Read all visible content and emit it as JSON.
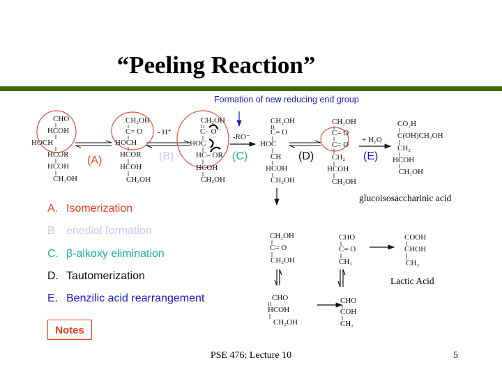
{
  "slide": {
    "title": "“Peeling Reaction”",
    "subtitle": "Formation of new reducing end group",
    "accent_bar_color": "#3d6b07",
    "footer": "PSE 476: Lecture 10",
    "page_number": "5",
    "notes_button": "Notes"
  },
  "scheme": {
    "structures": [
      {
        "id": "aldose",
        "lines": [
          "CHO",
          "HCOH",
          "HOCH",
          "HCOR",
          "HCOH",
          "CH₂OH"
        ]
      },
      {
        "id": "ketose",
        "lines": [
          "CH₂OH",
          "C= O",
          "HOCH",
          "HCOR",
          "HCOH",
          "CH₂OH"
        ]
      },
      {
        "id": "enediol-anion",
        "lines": [
          "CH₂OH",
          "C– O⁻",
          "HOC",
          "HC– OR",
          "HCOH",
          "CH₂OH"
        ]
      },
      {
        "id": "enol",
        "lines": [
          "CH₂OH",
          "C= O",
          "HOC",
          "CH",
          "HCOH",
          "CH₂OH"
        ]
      },
      {
        "id": "dicarbonyl",
        "lines": [
          "CH₂OH",
          "C= O",
          "C= O",
          "CH₂",
          "HCOH",
          "CH₂OH"
        ]
      },
      {
        "id": "glucoisosaccharinic-acid",
        "lines": [
          "CO₂H",
          "C(OH)CH₂OH",
          "CH₂",
          "HCOH",
          "CH₂OH"
        ]
      },
      {
        "id": "dihydroxyacetone",
        "lines": [
          "CH₂OH",
          "C= O",
          "CH₂OH"
        ]
      },
      {
        "id": "methylglyoxal",
        "lines": [
          "CHO",
          "C= O",
          "CH₃"
        ]
      },
      {
        "id": "lactic-acid",
        "lines": [
          "COOH",
          "CHOH",
          "CH₃"
        ]
      },
      {
        "id": "glyceraldehyde",
        "lines": [
          "CHO",
          "HCOH",
          "CH₂OH"
        ]
      },
      {
        "id": "enol-2",
        "lines": [
          "CHO",
          "COH",
          "CH₂"
        ]
      }
    ],
    "reagents": {
      "b": "- H⁺",
      "c": "-RO⁻",
      "e": "+ H₂O"
    },
    "step_labels": [
      "(A)",
      "(B)",
      "(C)",
      "(D)",
      "(E)"
    ],
    "product_captions": {
      "gisa": "glucoisosaccharinic acid",
      "lactic": "Lactic Acid"
    }
  },
  "steps_list": [
    {
      "letter": "A.",
      "text": "Isomerization",
      "color": "#e8401c"
    },
    {
      "letter": "B",
      "text": "enediol formation",
      "color": "#c8c8ee"
    },
    {
      "letter": "C.",
      "text": "β-alkoxy elimination",
      "color": "#19b888"
    },
    {
      "letter": "D.",
      "text": "Tautomerization",
      "color": "#111111"
    },
    {
      "letter": "E.",
      "text": "Benzilic acid rearrangement",
      "color": "#1a1acc"
    }
  ],
  "colors": {
    "circle": "#e0503a",
    "step_label_colors": [
      "#e8401c",
      "#c8c8ee",
      "#19b888",
      "#111111",
      "#1a1acc"
    ],
    "subtitle": "#1a1acc"
  }
}
